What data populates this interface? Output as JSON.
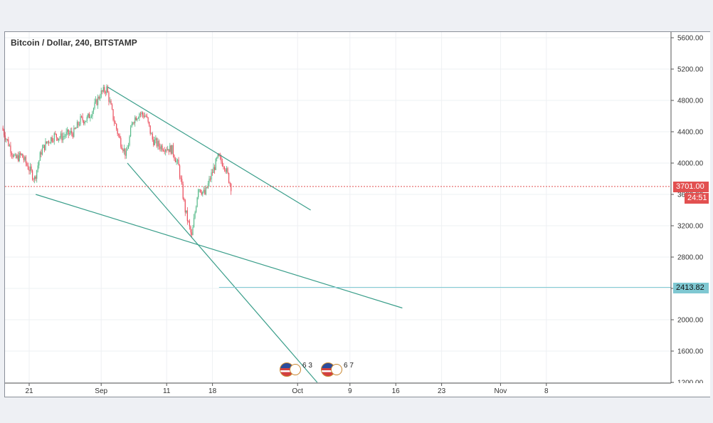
{
  "chart_data": {
    "type": "candlestick",
    "title": "Bitcoin / Dollar, 240, BITSTAMP",
    "y_ticks": [
      "5600.00",
      "5200.00",
      "4800.00",
      "4400.00",
      "4000.00",
      "3600.00",
      "3200.00",
      "2800.00",
      "2400.00",
      "2000.00",
      "1600.00",
      "1200.00"
    ],
    "x_ticks": [
      "21",
      "Sep",
      "11",
      "18",
      "Oct",
      "9",
      "16",
      "23",
      "Nov",
      "8"
    ],
    "last_price_label": "3701.00",
    "countdown_label": "24:51",
    "horizontal_line_label": "2413.82",
    "ylim": [
      1200,
      5700
    ],
    "price_path": [
      [
        "2017-08-17",
        4450
      ],
      [
        "2017-08-18",
        4250
      ],
      [
        "2017-08-19",
        4050
      ],
      [
        "2017-08-20",
        4100
      ],
      [
        "2017-08-21",
        3950
      ],
      [
        "2017-08-22",
        3800
      ],
      [
        "2017-08-23",
        4150
      ],
      [
        "2017-08-24",
        4280
      ],
      [
        "2017-08-25",
        4350
      ],
      [
        "2017-08-26",
        4330
      ],
      [
        "2017-08-27",
        4370
      ],
      [
        "2017-08-28",
        4390
      ],
      [
        "2017-08-29",
        4550
      ],
      [
        "2017-08-30",
        4560
      ],
      [
        "2017-08-31",
        4700
      ],
      [
        "2017-09-01",
        4880
      ],
      [
        "2017-09-02",
        4950
      ],
      [
        "2017-09-03",
        4580
      ],
      [
        "2017-09-04",
        4300
      ],
      [
        "2017-09-05",
        4100
      ],
      [
        "2017-09-06",
        4550
      ],
      [
        "2017-09-07",
        4640
      ],
      [
        "2017-09-08",
        4600
      ],
      [
        "2017-09-09",
        4300
      ],
      [
        "2017-09-10",
        4220
      ],
      [
        "2017-09-11",
        4200
      ],
      [
        "2017-09-12",
        4170
      ],
      [
        "2017-09-13",
        3950
      ],
      [
        "2017-09-14",
        3400
      ],
      [
        "2017-09-15",
        3050
      ],
      [
        "2017-09-16",
        3700
      ],
      [
        "2017-09-17",
        3600
      ],
      [
        "2017-09-18",
        3850
      ],
      [
        "2017-09-19",
        4070
      ],
      [
        "2017-09-20",
        3980
      ],
      [
        "2017-09-21",
        3701
      ]
    ],
    "trend_lines": [
      {
        "from": [
          "2017-09-02",
          4970
        ],
        "to": [
          "2017-10-03",
          3400
        ]
      },
      {
        "from": [
          "2017-08-22",
          3600
        ],
        "to": [
          "2017-10-17",
          2150
        ]
      },
      {
        "from": [
          "2017-09-05",
          4000
        ],
        "to": [
          "2017-10-04",
          1200
        ]
      }
    ],
    "horizontal_line": {
      "from": "2017-09-19",
      "value": 2413.82
    },
    "last_price": 3701.0,
    "events": [
      {
        "date": "2017-09-18",
        "value": "6 3"
      },
      {
        "date": "2017-09-25",
        "value": "6 7"
      }
    ],
    "colors": {
      "up": "#53b987",
      "down": "#eb4d5c",
      "trend": "#3a9e8a",
      "hline": "#7fc8d2",
      "last": "#e25050"
    },
    "grid": true
  }
}
